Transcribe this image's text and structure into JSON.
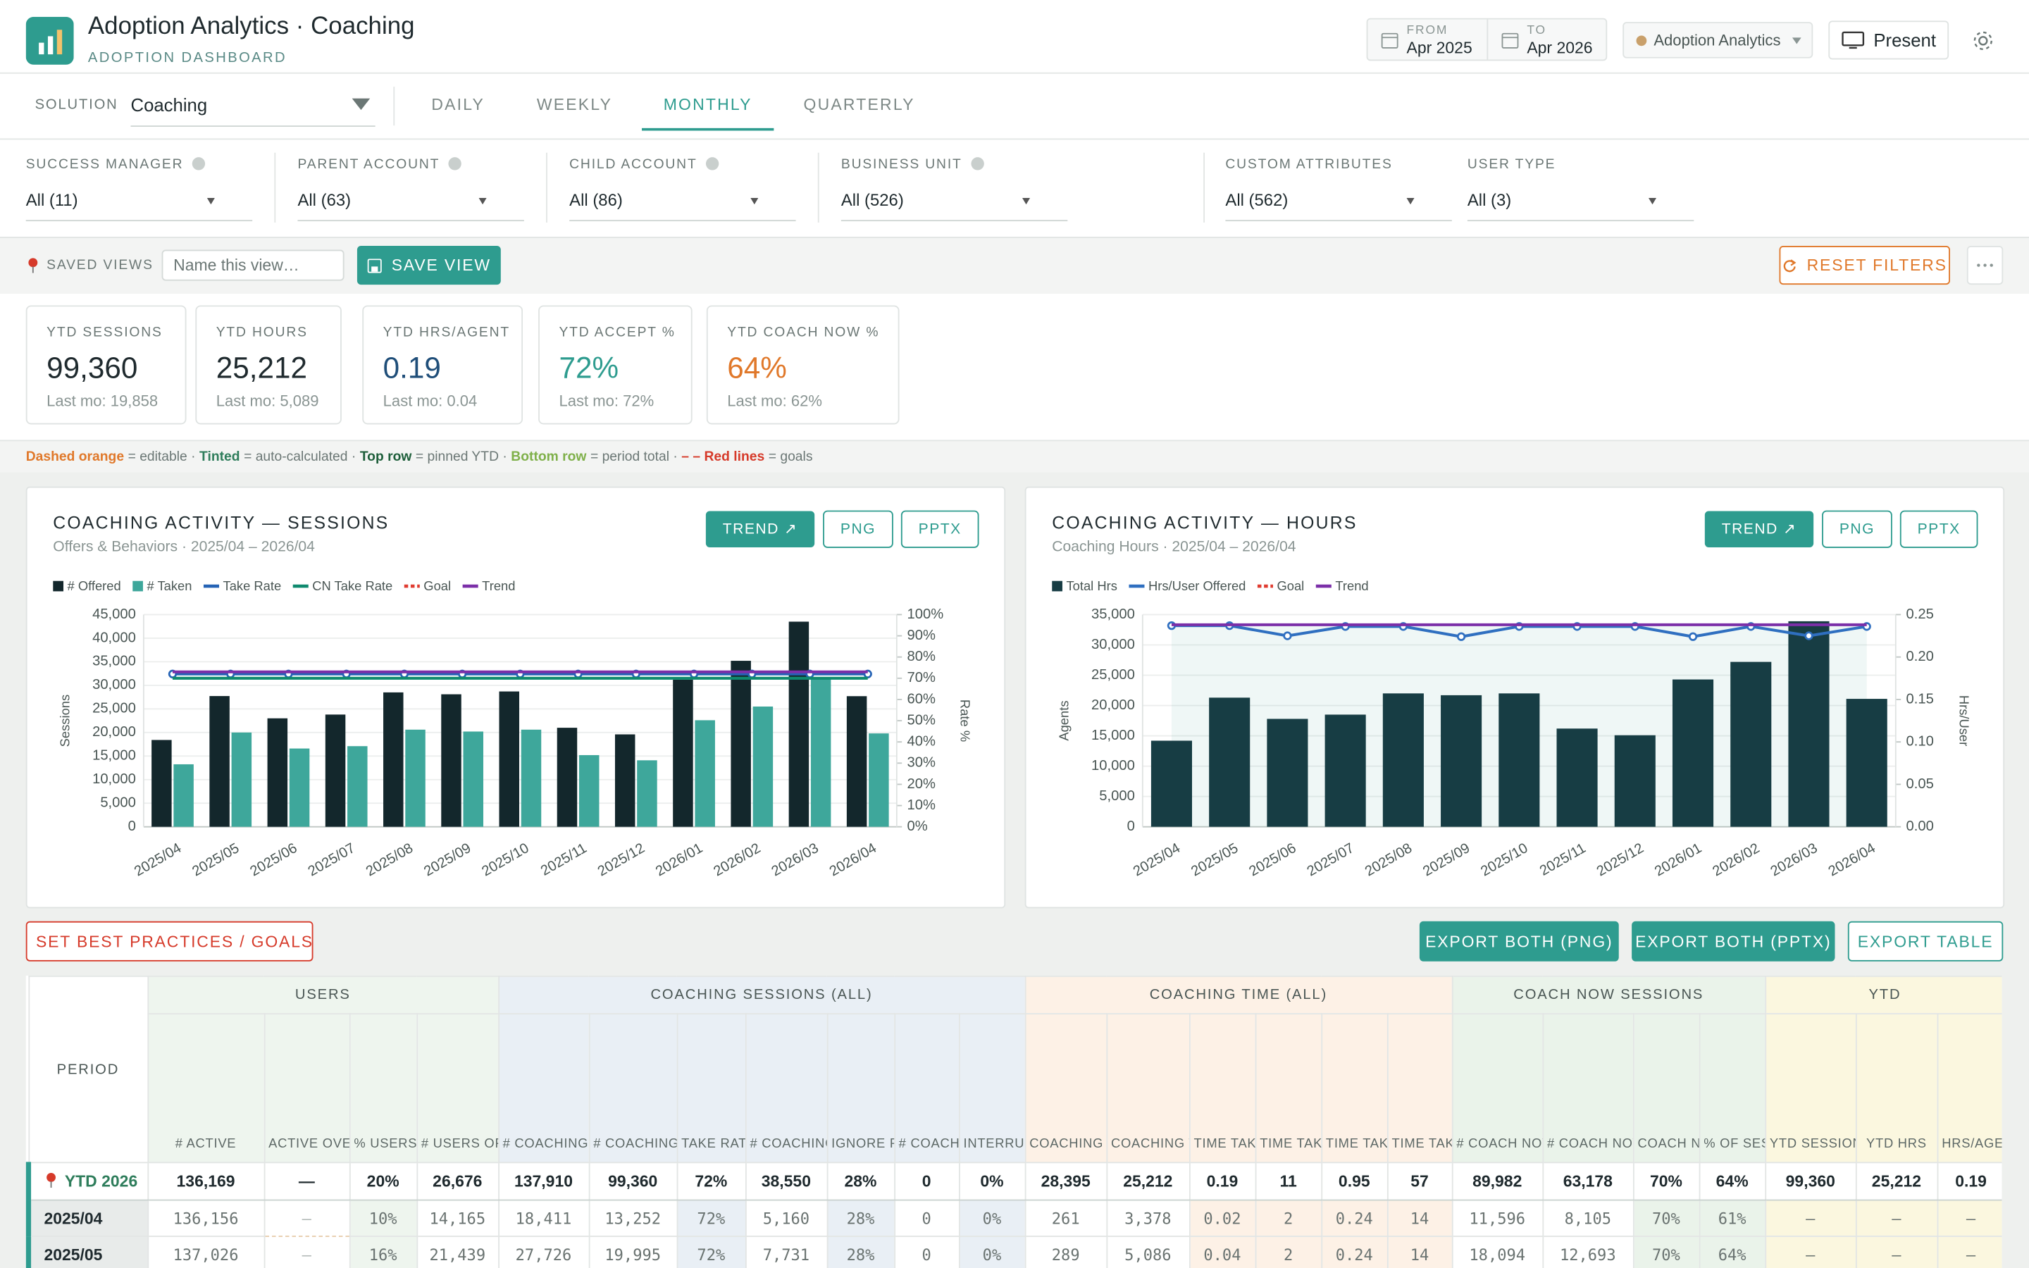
{
  "header": {
    "title": "Adoption Analytics · Coaching",
    "subtitle": "ADOPTION DASHBOARD",
    "from_label": "FROM",
    "from": "Apr 2025",
    "to_label": "TO",
    "to": "Apr 2026",
    "workspace": "Adoption Analytics",
    "present": "Present"
  },
  "nav": {
    "solution_label": "SOLUTION",
    "solution": "Coaching",
    "tabs": [
      "DAILY",
      "WEEKLY",
      "MONTHLY",
      "QUARTERLY"
    ],
    "active_tab": 2
  },
  "filters": [
    {
      "label": "SUCCESS MANAGER",
      "value": "All (11)",
      "info": true
    },
    {
      "label": "PARENT ACCOUNT",
      "value": "All (63)",
      "info": true
    },
    {
      "label": "CHILD ACCOUNT",
      "value": "All (86)",
      "info": true
    },
    {
      "label": "BUSINESS UNIT",
      "value": "All (526)",
      "info": true
    },
    {
      "label": "CUSTOM ATTRIBUTES",
      "value": "All (562)",
      "info": false
    },
    {
      "label": "USER TYPE",
      "value": "All (3)",
      "info": false
    }
  ],
  "saved_views": {
    "label": "SAVED VIEWS",
    "placeholder": "Name this view…",
    "save": "SAVE VIEW",
    "reset": "RESET FILTERS"
  },
  "kpis": [
    {
      "label": "YTD SESSIONS",
      "value": "99,360",
      "sub": "Last mo: 19,858",
      "color": "#1f2a2e"
    },
    {
      "label": "YTD HOURS",
      "value": "25,212",
      "sub": "Last mo: 5,089",
      "color": "#1f2a2e"
    },
    {
      "label": "YTD HRS/AGENT",
      "value": "0.19",
      "sub": "Last mo: 0.04",
      "color": "#1f4e79"
    },
    {
      "label": "YTD ACCEPT %",
      "value": "72%",
      "sub": "Last mo: 72%",
      "color": "#2e9c8f"
    },
    {
      "label": "YTD COACH NOW %",
      "value": "64%",
      "sub": "Last mo: 62%",
      "color": "#e0782a"
    }
  ],
  "key": [
    {
      "text": "Dashed orange",
      "color": "#e0782a"
    },
    {
      "text": "= editable ·"
    },
    {
      "text": "Tinted",
      "color": "#2e7d5b"
    },
    {
      "text": "= auto-calculated ·"
    },
    {
      "text": "Top row",
      "color": "#1d5e3a"
    },
    {
      "text": "= pinned YTD ·"
    },
    {
      "text": "Bottom row",
      "color": "#7fb04a"
    },
    {
      "text": "= period total ·"
    },
    {
      "text": "– – Red lines",
      "color": "#d63a2a"
    },
    {
      "text": "= goals"
    }
  ],
  "chart_data": [
    {
      "type": "bar",
      "title": "COACHING ACTIVITY — SESSIONS",
      "subtitle": "Offers & Behaviors · 2025/04 – 2026/04",
      "buttons": [
        "TREND ↗",
        "PNG",
        "PPTX"
      ],
      "y_label": "Sessions",
      "y2_label": "Rate %",
      "categories": [
        "2025/04",
        "2025/05",
        "2025/06",
        "2025/07",
        "2025/08",
        "2025/09",
        "2025/10",
        "2025/11",
        "2025/12",
        "2026/01",
        "2026/02",
        "2026/03",
        "2026/04"
      ],
      "series": [
        {
          "name": "# Offered",
          "kind": "bar",
          "color": "#13272c",
          "values": [
            18411,
            27726,
            23000,
            23800,
            28500,
            28100,
            28700,
            21000,
            19600,
            31200,
            35200,
            43500,
            27700
          ]
        },
        {
          "name": "# Taken",
          "kind": "bar",
          "color": "#3ea79b",
          "values": [
            13252,
            19995,
            16600,
            17100,
            20600,
            20200,
            20600,
            15200,
            14100,
            22600,
            25500,
            31400,
            19800
          ]
        },
        {
          "name": "Take Rate",
          "kind": "line",
          "axis": "y2",
          "color": "#2563b5",
          "markers": true,
          "values": [
            72,
            72,
            72,
            72,
            72,
            72,
            72,
            72,
            72,
            72,
            72,
            72,
            72
          ]
        },
        {
          "name": "CN Take Rate",
          "kind": "line",
          "axis": "y2",
          "color": "#0f8a6e",
          "values": [
            70,
            70,
            70,
            70,
            70,
            70,
            70,
            70,
            70,
            70,
            70,
            70,
            70
          ]
        },
        {
          "name": "Goal",
          "kind": "line",
          "axis": "y2",
          "color": "#e03c31",
          "dash": true,
          "values": [
            null,
            null,
            null,
            null,
            null,
            null,
            null,
            null,
            null,
            null,
            null,
            null,
            null
          ]
        },
        {
          "name": "Trend",
          "kind": "line",
          "axis": "y2",
          "color": "#7b2fa8",
          "values": [
            73,
            73,
            73,
            73,
            73,
            73,
            73,
            73,
            73,
            73,
            73,
            73,
            73
          ]
        }
      ],
      "ylim": [
        0,
        45000
      ],
      "yticks": [
        0,
        {
          "value": 5000,
          "label": "5,000"
        },
        {
          "value": 10000,
          "label": "10,000"
        },
        {
          "value": 15000,
          "label": "15,000"
        },
        {
          "value": 20000,
          "label": "20,000"
        },
        {
          "value": 25000,
          "label": "25,000"
        },
        {
          "value": 30000,
          "label": "30,000"
        },
        {
          "value": 35000,
          "label": "35,000"
        },
        {
          "value": 40000,
          "label": "40,000"
        },
        {
          "value": 45000,
          "label": "45,000"
        }
      ],
      "y2lim": [
        0,
        100
      ],
      "y2ticks": [
        {
          "value": 0,
          "label": "0%"
        },
        {
          "value": 10,
          "label": "10%"
        },
        {
          "value": 20,
          "label": "20%"
        },
        {
          "value": 30,
          "label": "30%"
        },
        {
          "value": 40,
          "label": "40%"
        },
        {
          "value": 50,
          "label": "50%"
        },
        {
          "value": 60,
          "label": "60%"
        },
        {
          "value": 70,
          "label": "70%"
        },
        {
          "value": 80,
          "label": "80%"
        },
        {
          "value": 90,
          "label": "90%"
        },
        {
          "value": 100,
          "label": "100%"
        }
      ],
      "grid": true
    },
    {
      "type": "bar",
      "title": "COACHING ACTIVITY — HOURS",
      "subtitle": "Coaching Hours · 2025/04 – 2026/04",
      "buttons": [
        "TREND ↗",
        "PNG",
        "PPTX"
      ],
      "y_label": "Agents",
      "y2_label": "Hrs/User",
      "categories": [
        "2025/04",
        "2025/05",
        "2025/06",
        "2025/07",
        "2025/08",
        "2025/09",
        "2025/10",
        "2025/11",
        "2025/12",
        "2026/01",
        "2026/02",
        "2026/03",
        "2026/04"
      ],
      "series": [
        {
          "name": "Total Hrs",
          "kind": "bar",
          "color": "#173d44",
          "values": [
            14200,
            21300,
            17800,
            18500,
            22000,
            21700,
            22000,
            16200,
            15100,
            24300,
            27200,
            33900,
            21100
          ]
        },
        {
          "name": "Hrs/User Offered",
          "kind": "line",
          "axis": "y2",
          "color": "#2f6fc0",
          "markers": true,
          "values": [
            0.237,
            0.237,
            0.225,
            0.236,
            0.236,
            0.224,
            0.236,
            0.236,
            0.236,
            0.224,
            0.236,
            0.225,
            0.236
          ]
        },
        {
          "name": "Goal",
          "kind": "line",
          "axis": "y2",
          "color": "#e03c31",
          "dash": true,
          "values": [
            null,
            null,
            null,
            null,
            null,
            null,
            null,
            null,
            null,
            null,
            null,
            null,
            null
          ]
        },
        {
          "name": "Trend",
          "kind": "line",
          "axis": "y2",
          "color": "#7b2fa8",
          "area": true,
          "values": [
            0.238,
            0.238,
            0.238,
            0.238,
            0.238,
            0.238,
            0.238,
            0.238,
            0.238,
            0.238,
            0.238,
            0.238,
            0.238
          ]
        }
      ],
      "ylim": [
        0,
        35000
      ],
      "yticks": [
        0,
        {
          "value": 5000,
          "label": "5,000"
        },
        {
          "value": 10000,
          "label": "10,000"
        },
        {
          "value": 15000,
          "label": "15,000"
        },
        {
          "value": 20000,
          "label": "20,000"
        },
        {
          "value": 25000,
          "label": "25,000"
        },
        {
          "value": 30000,
          "label": "30,000"
        },
        {
          "value": 35000,
          "label": "35,000"
        }
      ],
      "y2lim": [
        0,
        0.25
      ],
      "y2ticks": [
        {
          "value": 0,
          "label": "0.00"
        },
        0.05,
        {
          "value": 0.1,
          "label": "0.10"
        },
        0.15,
        {
          "value": 0.2,
          "label": "0.20"
        },
        0.25
      ],
      "grid": true
    }
  ],
  "actions": {
    "goals": "SET BEST PRACTICES / GOALS",
    "export_png": "EXPORT BOTH (PNG)",
    "export_pptx": "EXPORT BOTH (PPTX)",
    "export_table": "EXPORT TABLE"
  },
  "table": {
    "period_header": "PERIOD",
    "groups": [
      {
        "name": "USERS",
        "span": 4,
        "color": "#eef5ee"
      },
      {
        "name": "COACHING SESSIONS (ALL)",
        "span": 7,
        "color": "#e9eff5"
      },
      {
        "name": "COACHING TIME (ALL)",
        "span": 6,
        "color": "#fdf1e6"
      },
      {
        "name": "COACH NOW SESSIONS",
        "span": 4,
        "color": "#eaf3ea"
      },
      {
        "name": "YTD",
        "span": 3,
        "color": "#fbf7df"
      }
    ],
    "columns": [
      "# ACTIVE",
      "ACTIVE OVERRIDE %",
      "% USERS OFFERED COACHING i",
      "# USERS OFFERED COACHING",
      "# COACHING OFFERED",
      "# COACHING TAKEN",
      "TAKE RATE",
      "# COACHING IGNORED",
      "IGNORE RATE",
      "# COACHING INTERRUPTED",
      "INTERRUPT RATE",
      "COACHING TIME OFFERED (HRS)",
      "COACHING TIME TAKEN (HRS)",
      "TIME TAKEN (HRS)/USER",
      "TIME TAKEN (MIN)/USER",
      "TIME TAKEN (HRS)/USER REC. SESSIONS",
      "TIME TAKEN (MIN)/USER REC. SESSIONS",
      "# COACH NOW OFFERED",
      "# COACH NOW TAKEN",
      "COACH NOW TAKE RATE",
      "% OF SESSIONS COACH NOW",
      "YTD SESSIONS",
      "YTD HRS",
      "HRS/AGENT"
    ],
    "rows": [
      {
        "period": "YTD 2026",
        "pinned": true,
        "cells": [
          "136,169",
          "—",
          "20%",
          "26,676",
          "137,910",
          "99,360",
          "72%",
          "38,550",
          "28%",
          "0",
          "0%",
          "28,395",
          "25,212",
          "0.19",
          "11",
          "0.95",
          "57",
          "89,982",
          "63,178",
          "70%",
          "64%",
          "99,360",
          "25,212",
          "0.19"
        ]
      },
      {
        "period": "2025/04",
        "cells": [
          "136,156",
          "–",
          "10%",
          "14,165",
          "18,411",
          "13,252",
          "72%",
          "5,160",
          "28%",
          "0",
          "0%",
          "261",
          "3,378",
          "0.02",
          "2",
          "0.24",
          "14",
          "11,596",
          "8,105",
          "70%",
          "61%",
          "—",
          "—",
          "—"
        ]
      },
      {
        "period": "2025/05",
        "cells": [
          "137,026",
          "–",
          "16%",
          "21,439",
          "27,726",
          "19,995",
          "72%",
          "7,731",
          "28%",
          "0",
          "0%",
          "289",
          "5,086",
          "0.04",
          "2",
          "0.24",
          "14",
          "18,094",
          "12,693",
          "70%",
          "64%",
          "—",
          "—",
          "—"
        ]
      }
    ]
  }
}
